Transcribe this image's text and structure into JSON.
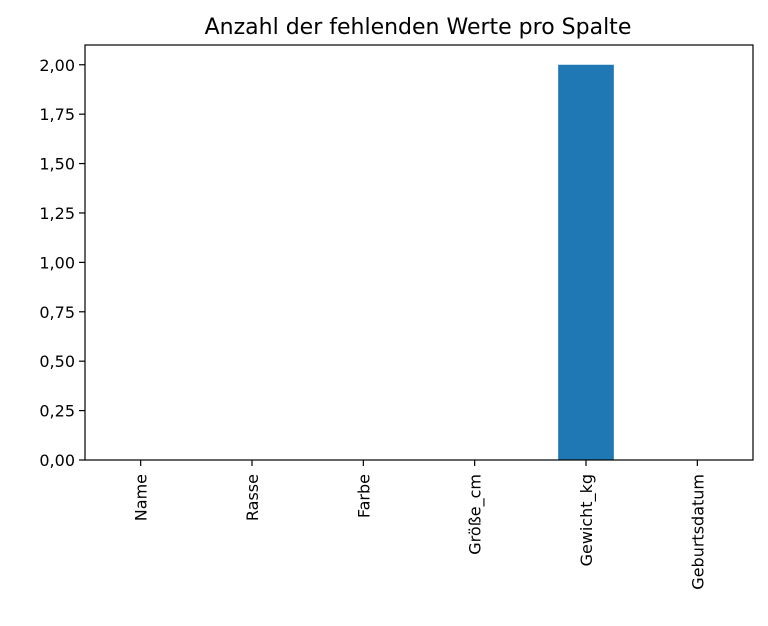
{
  "chart_data": {
    "type": "bar",
    "title": "Anzahl der fehlenden Werte pro Spalte",
    "xlabel": "",
    "ylabel": "",
    "categories": [
      "Name",
      "Rasse",
      "Farbe",
      "Größe_cm",
      "Gewicht_kg",
      "Geburtsdatum"
    ],
    "values": [
      0,
      0,
      0,
      0,
      2,
      0
    ],
    "ylim": [
      0,
      2.1
    ],
    "yticks": [
      "0,00",
      "0,25",
      "0,50",
      "0,75",
      "1,00",
      "1,25",
      "1,50",
      "1,75",
      "2,00"
    ],
    "bar_color": "#1f77b4",
    "grid": false,
    "legend": false
  }
}
